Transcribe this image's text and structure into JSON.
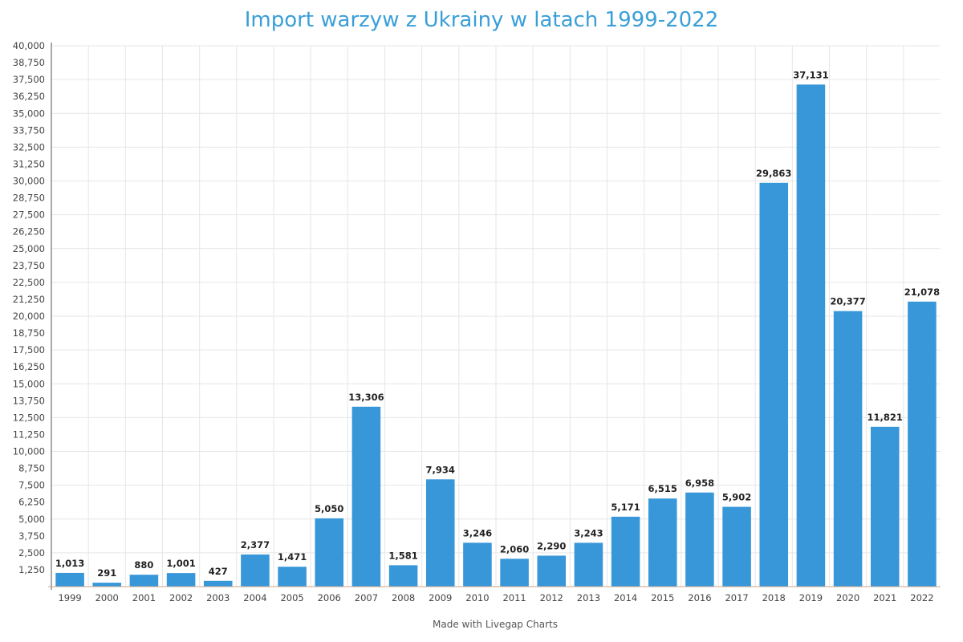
{
  "chart_data": {
    "type": "bar",
    "title": "Import warzyw z Ukrainy w latach 1999-2022",
    "xlabel": "",
    "ylabel": "",
    "ylim": [
      0,
      40000
    ],
    "ytick_step": 1250,
    "grid": true,
    "bar_color": "#3897d9",
    "categories": [
      "1999",
      "2000",
      "2001",
      "2002",
      "2003",
      "2004",
      "2005",
      "2006",
      "2007",
      "2008",
      "2009",
      "2010",
      "2011",
      "2012",
      "2013",
      "2014",
      "2015",
      "2016",
      "2017",
      "2018",
      "2019",
      "2020",
      "2021",
      "2022"
    ],
    "values": [
      1013,
      291,
      880,
      1001,
      427,
      2377,
      1471,
      5050,
      13306,
      1581,
      7934,
      3246,
      2060,
      2290,
      3243,
      5171,
      6515,
      6958,
      5902,
      29863,
      37131,
      20377,
      11821,
      21078
    ],
    "data_labels": [
      "1,013",
      "291",
      "880",
      "1,001",
      "427",
      "2,377",
      "1,471",
      "5,050",
      "13,306",
      "1,581",
      "7,934",
      "3,246",
      "2,060",
      "2,290",
      "3,243",
      "5,171",
      "6,515",
      "6,958",
      "5,902",
      "29,863",
      "37,131",
      "20,377",
      "11,821",
      "21,078"
    ]
  },
  "footer": "Made with Livegap Charts"
}
